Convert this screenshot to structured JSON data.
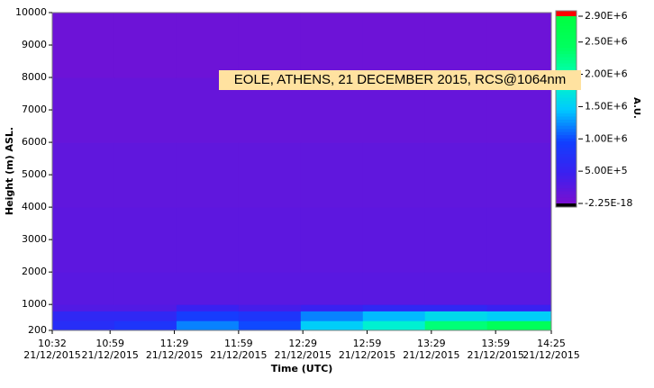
{
  "chart_data": {
    "type": "heatmap",
    "annotation": "EOLE, ATHENS, 21 DECEMBER 2015, RCS@1064nm",
    "x_label": "Time (UTC)",
    "y_label": "Height (m) ASL.",
    "colorbar_label": "A.U.",
    "xlim": [
      632,
      865
    ],
    "xticks": [
      {
        "value": 632,
        "label": "10:32\n21/12/2015"
      },
      {
        "value": 659,
        "label": "10:59\n21/12/2015"
      },
      {
        "value": 689,
        "label": "11:29\n21/12/2015"
      },
      {
        "value": 719,
        "label": "11:59\n21/12/2015"
      },
      {
        "value": 749,
        "label": "12:29\n21/12/2015"
      },
      {
        "value": 779,
        "label": "12:59\n21/12/2015"
      },
      {
        "value": 809,
        "label": "13:29\n21/12/2015"
      },
      {
        "value": 839,
        "label": "13:59\n21/12/2015"
      },
      {
        "value": 865,
        "label": "14:25\n21/12/2015"
      }
    ],
    "ylim": [
      200,
      10000
    ],
    "yticks": [
      200,
      1000,
      2000,
      3000,
      4000,
      5000,
      6000,
      7000,
      8000,
      9000,
      10000
    ],
    "x_bins": [
      632,
      661,
      690,
      719,
      748,
      777,
      806,
      835,
      865
    ],
    "y_bins": [
      200,
      500,
      800,
      1000,
      2000,
      4000,
      6000,
      8000,
      10000
    ],
    "values": [
      [
        700000,
        800000,
        1200000,
        1000000,
        1500000,
        1800000,
        2300000,
        2500000
      ],
      [
        600000,
        600000,
        900000,
        800000,
        1200000,
        1400000,
        1600000,
        1500000
      ],
      [
        300000,
        300000,
        500000,
        400000,
        500000,
        600000,
        600000,
        500000
      ],
      [
        250000,
        250000,
        250000,
        250000,
        250000,
        250000,
        250000,
        250000
      ],
      [
        220000,
        220000,
        220000,
        220000,
        220000,
        220000,
        220000,
        220000
      ],
      [
        200000,
        200000,
        200000,
        200000,
        200000,
        200000,
        200000,
        200000
      ],
      [
        150000,
        150000,
        150000,
        150000,
        150000,
        150000,
        150000,
        150000
      ],
      [
        100000,
        100000,
        100000,
        100000,
        100000,
        100000,
        100000,
        100000
      ]
    ],
    "zlim": [
      -2.25e-18,
      2900000
    ],
    "zticks": [
      {
        "value": 2900000,
        "label": "2.90E+6"
      },
      {
        "value": 2500000,
        "label": "2.50E+6"
      },
      {
        "value": 2000000,
        "label": "2.00E+6"
      },
      {
        "value": 1500000,
        "label": "1.50E+6"
      },
      {
        "value": 1000000,
        "label": "1.00E+6"
      },
      {
        "value": 500000,
        "label": "5.00E+5"
      },
      {
        "value": -2.25e-18,
        "label": "-2.25E-18"
      }
    ],
    "colors": [
      "#7a10d0",
      "#3a20f0",
      "#1040ff",
      "#00c8ff",
      "#00ffc0",
      "#00ff60",
      "#00ff40"
    ],
    "over_color": "#ff0000",
    "under_color": "#000000"
  }
}
